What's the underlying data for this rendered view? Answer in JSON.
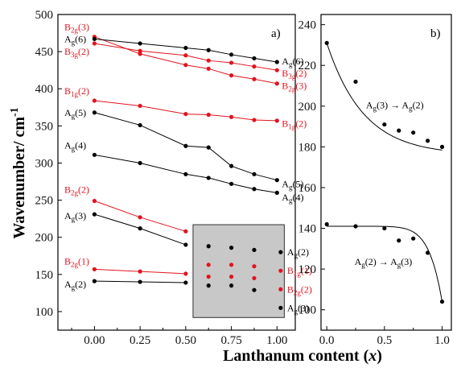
{
  "chart_data": [
    {
      "type": "scatter",
      "panel_label": "a)",
      "xlabel": "Lanthanum content (x)",
      "ylabel": "Wavenumber/ cm-1",
      "xlim": [
        -0.2,
        1.1
      ],
      "ylim": [
        75,
        500
      ],
      "xticks": [
        "0.00",
        "0.25",
        "0.50",
        "0.75",
        "1.00"
      ],
      "yticks": [
        "100",
        "150",
        "200",
        "250",
        "300",
        "350",
        "400",
        "450",
        "500"
      ],
      "x": [
        0,
        0.25,
        0.5,
        0.625,
        0.75,
        0.875,
        1.0
      ],
      "series": [
        {
          "name_main": "B",
          "name_sub": "2g",
          "name_suffix": "(3)",
          "color": "#e0141e",
          "values": [
            470,
            447,
            432,
            427,
            418,
            413,
            407
          ]
        },
        {
          "name_main": "A",
          "name_sub": "g",
          "name_suffix": "(6)",
          "color": "#000000",
          "values": [
            467,
            461,
            455,
            452,
            446,
            441,
            436
          ]
        },
        {
          "name_main": "B",
          "name_sub": "3g",
          "name_suffix": "(2)",
          "color": "#e0141e",
          "values": [
            461,
            451,
            445,
            438,
            435,
            430,
            425
          ]
        },
        {
          "name_main": "B",
          "name_sub": "1g",
          "name_suffix": "(2)",
          "color": "#e0141e",
          "values": [
            384,
            377,
            366,
            365,
            362,
            358,
            357
          ]
        },
        {
          "name_main": "A",
          "name_sub": "g",
          "name_suffix": "(5)",
          "color": "#000000",
          "values": [
            368,
            351,
            323,
            321,
            296,
            285,
            277
          ]
        },
        {
          "name_main": "A",
          "name_sub": "g",
          "name_suffix": "(4)",
          "color": "#000000",
          "values": [
            311,
            300,
            285,
            280,
            272,
            265,
            260
          ]
        },
        {
          "name_main": "B",
          "name_sub": "2g",
          "name_suffix": "(2)",
          "color": "#e0141e",
          "values": [
            249,
            227,
            208,
            null,
            null,
            null,
            null
          ]
        },
        {
          "name_main": "A",
          "name_sub": "g",
          "name_suffix": "(3)",
          "color": "#000000",
          "values": [
            231,
            212,
            190,
            null,
            null,
            null,
            null
          ]
        },
        {
          "name_main": "B",
          "name_sub": "2g",
          "name_suffix": "(1)",
          "color": "#e0141e",
          "values": [
            157,
            154,
            151,
            null,
            null,
            null,
            null
          ]
        },
        {
          "name_main": "A",
          "name_sub": "g",
          "name_suffix": "(2)",
          "color": "#000000",
          "values": [
            141,
            140,
            139,
            null,
            null,
            null,
            null
          ]
        }
      ],
      "inset_legend": [
        {
          "name_main": "A",
          "name_sub": "g",
          "name_suffix": "(2)",
          "color": "#000000",
          "values": [
            188,
            186,
            183
          ]
        },
        {
          "name_main": "B",
          "name_sub": "1g",
          "name_suffix": "(1)",
          "color": "#e0141e",
          "values": [
            163,
            163,
            161
          ]
        },
        {
          "name_main": "B",
          "name_sub": "2g",
          "name_suffix": "(2)",
          "color": "#e0141e",
          "values": [
            147,
            147,
            145
          ]
        },
        {
          "name_main": "A",
          "name_sub": "g",
          "name_suffix": "(3)",
          "color": "#000000",
          "values": [
            135,
            135,
            129
          ]
        }
      ],
      "inset_x": [
        0.625,
        0.75,
        0.875
      ],
      "right_labels": [
        {
          "name_main": "A",
          "name_sub": "g",
          "name_suffix": "(6)",
          "color": "#000000"
        },
        {
          "name_main": "B",
          "name_sub": "3g",
          "name_suffix": "(2)",
          "color": "#e0141e"
        },
        {
          "name_main": "B",
          "name_sub": "2g",
          "name_suffix": "(3)",
          "color": "#e0141e"
        },
        {
          "name_main": "B",
          "name_sub": "1g",
          "name_suffix": "(2)",
          "color": "#e0141e"
        },
        {
          "name_main": "A",
          "name_sub": "g",
          "name_suffix": "(5)",
          "color": "#000000"
        },
        {
          "name_main": "A",
          "name_sub": "g",
          "name_suffix": "(4)",
          "color": "#000000"
        }
      ]
    },
    {
      "type": "scatter",
      "panel_label": "b)",
      "xlim": [
        -0.05,
        1.08
      ],
      "ylim": [
        90,
        245
      ],
      "xticks": [
        "0.0",
        "0.5",
        "1.0"
      ],
      "yticks": [
        "100",
        "120",
        "140",
        "160",
        "180",
        "200",
        "220",
        "240"
      ],
      "x": [
        0,
        0.25,
        0.5,
        0.625,
        0.75,
        0.875,
        1.0
      ],
      "series": [
        {
          "annotation": "Ag(3) → Ag(2)",
          "values": [
            231,
            212,
            191,
            188,
            187,
            183,
            180
          ],
          "color": "#000000"
        },
        {
          "annotation": "Ag(2) → Ag(3)",
          "values": [
            142,
            141,
            140,
            134,
            135,
            128,
            104
          ],
          "color": "#000000"
        }
      ],
      "annotations": [
        {
          "pre": "A",
          "pre_sub": "g",
          "mid": "(3) → A",
          "mid_sub": "g",
          "post": "(2)"
        },
        {
          "pre": "A",
          "pre_sub": "g",
          "mid": "(2) → A",
          "mid_sub": "g",
          "post": "(3)"
        }
      ]
    }
  ]
}
